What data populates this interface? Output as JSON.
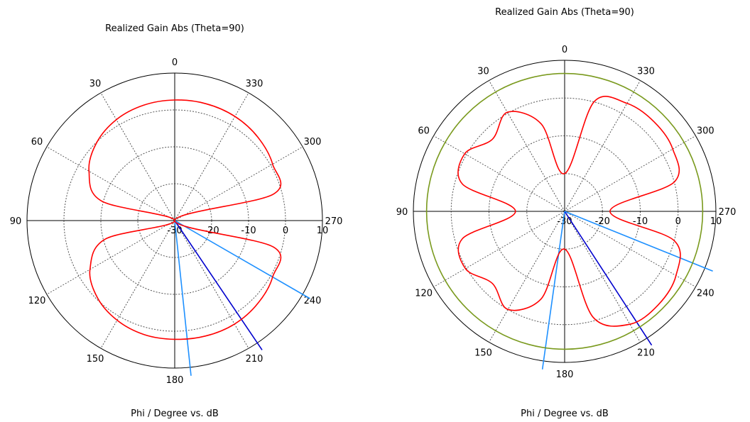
{
  "chart_data": [
    {
      "type": "polar-line",
      "title": "Realized Gain Abs (Theta=90)",
      "xlabel": "Phi / Degree vs. dB",
      "angle_ticks": [
        "0",
        "30",
        "60",
        "90",
        "120",
        "150",
        "180",
        "210",
        "240",
        "270",
        "300",
        "330"
      ],
      "radial_ticks": [
        "-30",
        "-20",
        "-10",
        "0",
        "10"
      ],
      "radial_range_db": [
        -30,
        10
      ],
      "angle_direction": "counterclockwise-from-top",
      "grid": true,
      "series": [
        {
          "color": "#ff0000",
          "phi_deg": [
            0,
            15,
            30,
            45,
            60,
            75,
            90,
            105,
            120,
            135,
            150,
            165,
            180,
            195,
            210,
            225,
            240,
            255,
            270,
            285,
            300,
            315,
            330,
            345
          ],
          "gain_db": [
            2.7,
            2.4,
            1.6,
            -0.1,
            -3.2,
            -9.5,
            -30,
            -10.5,
            -3.5,
            -0.4,
            1.2,
            2.0,
            2.2,
            2.4,
            2.4,
            1.8,
            0.6,
            -2.4,
            -30,
            -2.4,
            0.6,
            1.9,
            2.6,
            2.8
          ]
        }
      ],
      "markers": [
        {
          "color": "#1e90ff",
          "phi_deg": 186
        },
        {
          "color": "#0000cd",
          "phi_deg": 214
        },
        {
          "color": "#1e90ff",
          "phi_deg": 240
        }
      ]
    },
    {
      "type": "polar-line",
      "title": "Realized Gain Abs (Theta=90)",
      "xlabel": "Phi / Degree vs. dB",
      "angle_ticks": [
        "0",
        "30",
        "60",
        "90",
        "120",
        "150",
        "180",
        "210",
        "240",
        "270",
        "300",
        "330"
      ],
      "radial_ticks": [
        "-30",
        "-20",
        "-10",
        "0",
        "10"
      ],
      "radial_range_db": [
        -30,
        10
      ],
      "angle_direction": "counterclockwise-from-top",
      "grid": true,
      "series": [
        {
          "color": "#ff0000",
          "phi_deg": [
            0,
            15,
            30,
            45,
            60,
            75,
            90,
            105,
            120,
            135,
            150,
            165,
            180,
            195,
            210,
            225,
            240,
            255,
            270,
            285,
            300,
            315,
            330,
            345
          ],
          "gain_db": [
            -20,
            -6,
            0.3,
            -3,
            0.5,
            -2,
            -17,
            -2,
            0.3,
            -3,
            0,
            -6,
            -20,
            -1,
            4.5,
            5,
            4,
            0,
            -18,
            0,
            3,
            3.5,
            3,
            0
          ]
        },
        {
          "color": "#7a9a1e",
          "phi_deg": [
            0,
            15,
            30,
            45,
            60,
            75,
            90,
            105,
            120,
            135,
            150,
            165,
            180,
            195,
            210,
            225,
            240,
            255,
            270,
            285,
            300,
            315,
            330,
            345
          ],
          "gain_db": [
            6.5,
            6.5,
            6.5,
            6.5,
            6.5,
            6.5,
            6.5,
            6.5,
            6.5,
            6.5,
            6.5,
            6.5,
            6.5,
            6.5,
            6.5,
            6.5,
            6.5,
            6.5,
            6.5,
            6.5,
            6.5,
            6.5,
            6.5,
            6.5
          ]
        }
      ],
      "markers": [
        {
          "color": "#1e90ff",
          "phi_deg": 172
        },
        {
          "color": "#0000cd",
          "phi_deg": 213
        },
        {
          "color": "#1e90ff",
          "phi_deg": 248
        }
      ]
    }
  ]
}
